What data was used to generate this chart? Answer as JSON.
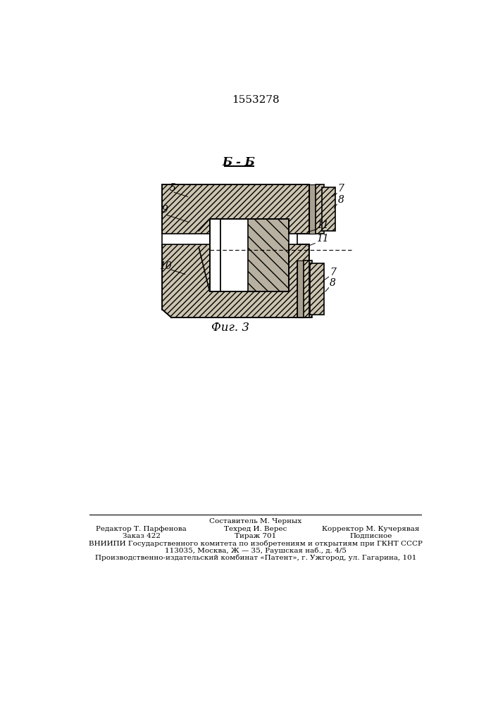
{
  "patent_number": "1553278",
  "section_label": "Б - Б",
  "fig_label": "Фиг. 3",
  "background_color": "#ffffff",
  "line_color": "#000000",
  "footer_col1_line1": "Редактор Т. Парфенова",
  "footer_col1_line2": "Заказ 422",
  "footer_col2_line1": "Техред И. Верес",
  "footer_col2_line2": "Тираж 701",
  "footer_col0_line1": "Составитель М. Черных",
  "footer_col3_line1": "Корректор М. Кучерявая",
  "footer_col3_line2": "Подписное",
  "footer_vniip1": "ВНИИПИ Государственного комитета по изобретениям и открытиям при ГКНТ СССР",
  "footer_vniip2": "113035, Москва, Ж — 35, Раушская наб., д. 4/5",
  "footer_vniip3": "Производственно-издательский комбинат «Патент», г. Ужгород, ул. Гагарина, 101"
}
